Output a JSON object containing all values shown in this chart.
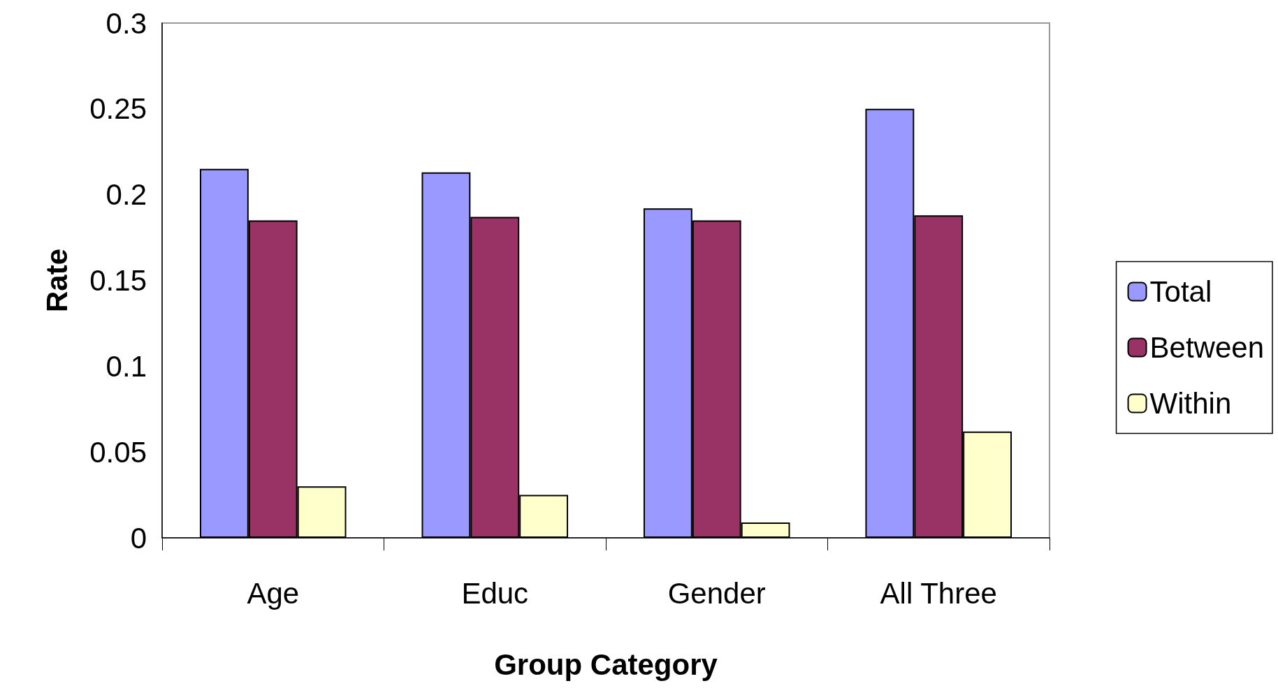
{
  "chart_data": {
    "type": "bar",
    "xlabel": "Group Category",
    "ylabel": "Rate",
    "categories": [
      "Age",
      "Educ",
      "Gender",
      "All Three"
    ],
    "series": [
      {
        "name": "Total",
        "color": "#9999ff",
        "values": [
          0.215,
          0.213,
          0.192,
          0.25
        ]
      },
      {
        "name": "Between",
        "color": "#993366",
        "values": [
          0.185,
          0.187,
          0.185,
          0.188
        ]
      },
      {
        "name": "Within",
        "color": "#ffffcc",
        "values": [
          0.03,
          0.025,
          0.009,
          0.062
        ]
      }
    ],
    "ylim": [
      0,
      0.3
    ],
    "yticks": [
      0,
      0.05,
      0.1,
      0.15,
      0.2,
      0.25,
      0.3
    ],
    "grid": false,
    "legend": "right"
  }
}
